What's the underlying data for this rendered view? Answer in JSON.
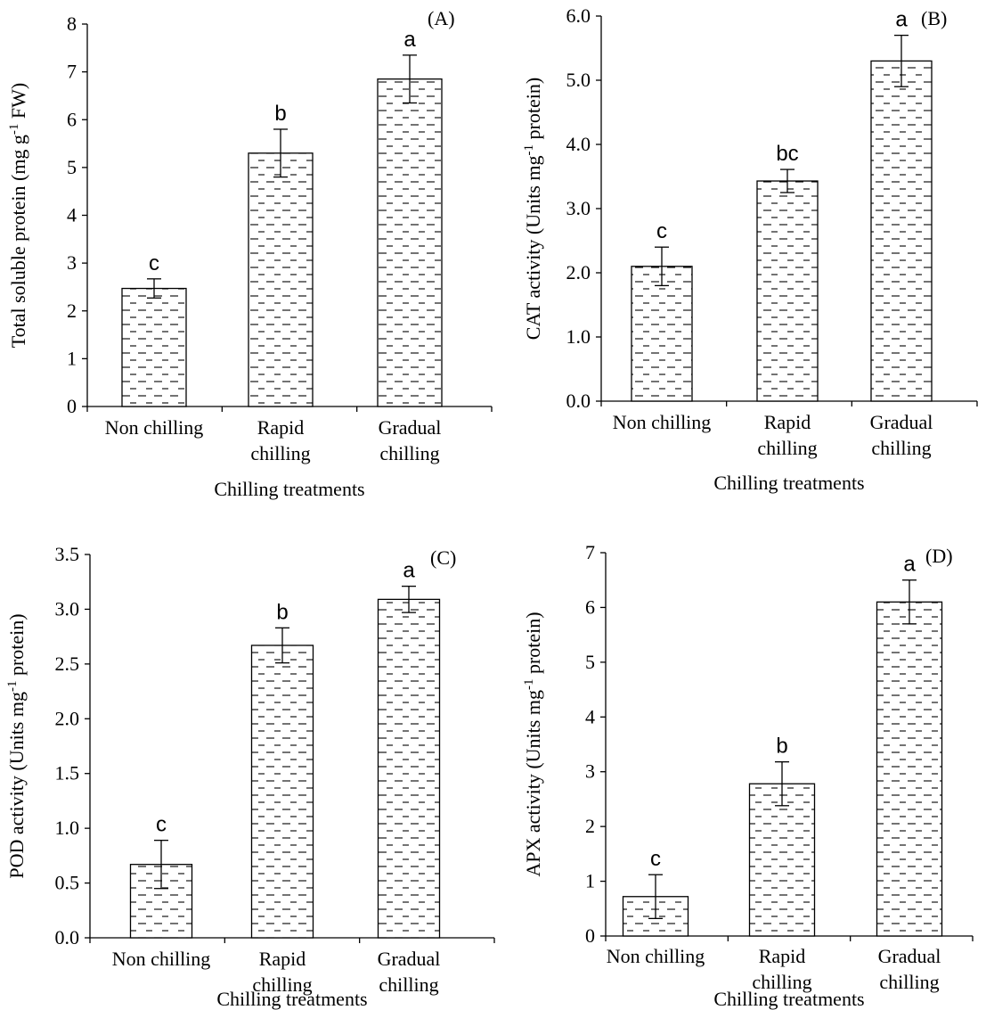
{
  "chart_data": [
    {
      "type": "bar",
      "panel_label": "(A)",
      "categories": [
        [
          "Non chilling"
        ],
        [
          "Rapid",
          "chilling"
        ],
        [
          "Gradual",
          "chilling"
        ]
      ],
      "values": [
        2.47,
        5.3,
        6.85
      ],
      "errors": [
        0.2,
        0.5,
        0.5
      ],
      "significance": [
        "c",
        "b",
        "a"
      ],
      "xlabel": "Chilling treatments",
      "ylabel": {
        "main": "Total soluble protein (mg g",
        "sup": "-1",
        "rest": " FW)"
      },
      "ylim": [
        0,
        8
      ],
      "yticks": [
        0,
        1,
        2,
        3,
        4,
        5,
        6,
        7,
        8
      ],
      "ytick_labels": [
        "0",
        "1",
        "2",
        "3",
        "4",
        "5",
        "6",
        "7",
        "8"
      ]
    },
    {
      "type": "bar",
      "panel_label": "(B)",
      "categories": [
        [
          "Non chilling"
        ],
        [
          "Rapid",
          "chilling"
        ],
        [
          "Gradual",
          "chilling"
        ]
      ],
      "values": [
        2.1,
        3.43,
        5.3
      ],
      "errors": [
        0.3,
        0.18,
        0.4
      ],
      "significance": [
        "c",
        "bc",
        "a"
      ],
      "xlabel": "Chilling treatments",
      "ylabel": {
        "main": "CAT activity (Units mg",
        "sup": "-1",
        "rest": " protein)"
      },
      "ylim": [
        0,
        6
      ],
      "yticks": [
        0,
        1,
        2,
        3,
        4,
        5,
        6
      ],
      "ytick_labels": [
        "0.0",
        "1.0",
        "2.0",
        "3.0",
        "4.0",
        "5.0",
        "6.0"
      ]
    },
    {
      "type": "bar",
      "panel_label": "(C)",
      "categories": [
        [
          "Non chilling"
        ],
        [
          "Rapid",
          "chilling"
        ],
        [
          "Gradual",
          "chilling"
        ]
      ],
      "values": [
        0.67,
        2.67,
        3.09
      ],
      "errors": [
        0.22,
        0.16,
        0.12
      ],
      "significance": [
        "c",
        "b",
        "a"
      ],
      "xlabel": "Chilling treatments",
      "ylabel": {
        "main": "POD activity (Units mg",
        "sup": "-1",
        "rest": " protein)"
      },
      "ylim": [
        0,
        3.5
      ],
      "yticks": [
        0,
        0.5,
        1,
        1.5,
        2,
        2.5,
        3,
        3.5
      ],
      "ytick_labels": [
        "0.0",
        "0.5",
        "1.0",
        "1.5",
        "2.0",
        "2.5",
        "3.0",
        "3.5"
      ]
    },
    {
      "type": "bar",
      "panel_label": "(D)",
      "categories": [
        [
          "Non chilling"
        ],
        [
          "Rapid",
          "chilling"
        ],
        [
          "Gradual",
          "chilling"
        ]
      ],
      "values": [
        0.72,
        2.78,
        6.1
      ],
      "errors": [
        0.4,
        0.4,
        0.4
      ],
      "significance": [
        "c",
        "b",
        "a"
      ],
      "xlabel": "Chilling treatments",
      "ylabel": {
        "main": "APX activity (Units mg",
        "sup": "-1",
        "rest": " protein)"
      },
      "ylim": [
        0,
        7
      ],
      "yticks": [
        0,
        1,
        2,
        3,
        4,
        5,
        6,
        7
      ],
      "ytick_labels": [
        "0",
        "1",
        "2",
        "3",
        "4",
        "5",
        "6",
        "7"
      ]
    }
  ]
}
